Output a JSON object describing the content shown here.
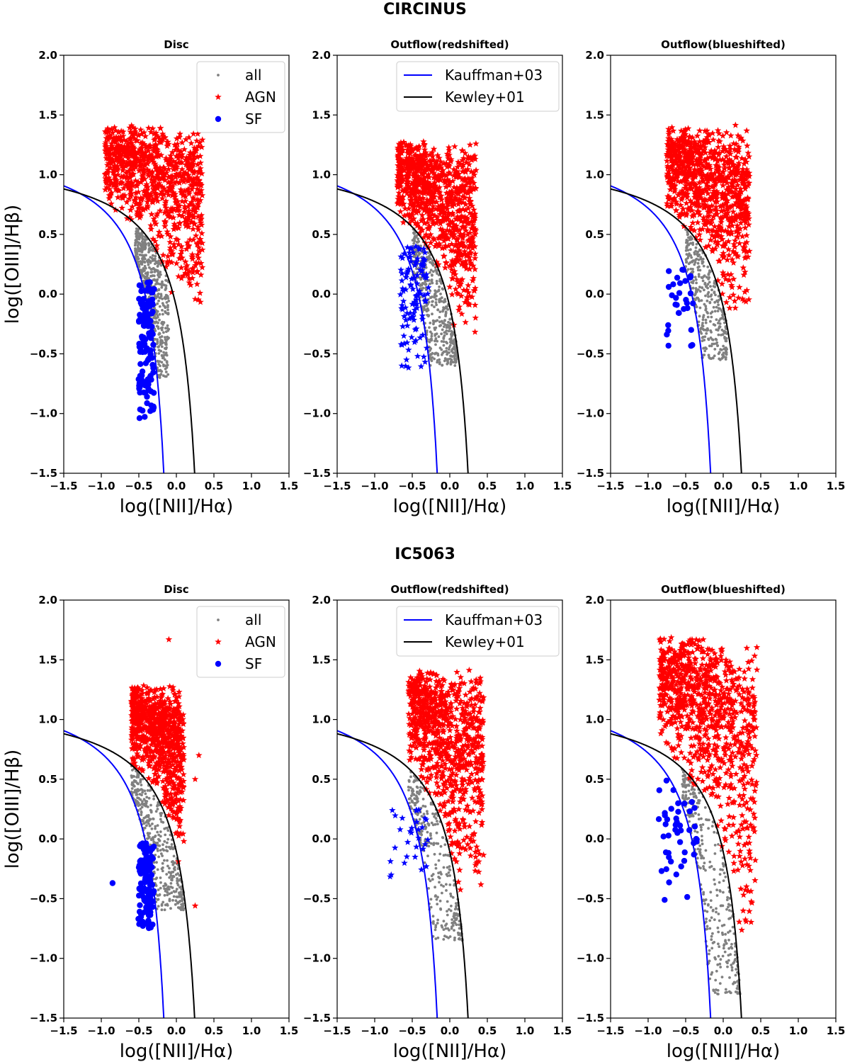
{
  "chart_data": [
    {
      "galaxy": "CIRCINUS",
      "panels": [
        {
          "title": "Disc",
          "type": "scatter",
          "legend": {
            "kind": "markers",
            "location": "upper-right",
            "entries": [
              "all",
              "AGN",
              "SF"
            ]
          },
          "clouds": [
            {
              "label": "all",
              "color": "#808080",
              "marker": "dot",
              "count": 500,
              "x": [
                -0.55,
                -0.1
              ],
              "ybottom": -0.7,
              "ytop": 0.55,
              "mode": "sf_band"
            },
            {
              "label": "AGN",
              "color": "#ff0000",
              "marker": "star",
              "count": 900,
              "x": [
                -0.95,
                0.35
              ],
              "ybottom": -0.15,
              "ytop": 1.42,
              "mode": "agn"
            },
            {
              "label": "SF",
              "color": "#0000ff",
              "marker": "circle",
              "count": 130,
              "x": [
                -0.5,
                -0.3
              ],
              "ybottom": -1.05,
              "ytop": 0.1,
              "mode": "column"
            }
          ]
        },
        {
          "title": "Outflow(redshifted)",
          "type": "scatter",
          "legend": {
            "kind": "lines",
            "location": "upper-right",
            "entries": [
              "Kauffman+03",
              "Kewley+01"
            ]
          },
          "clouds": [
            {
              "label": "all",
              "color": "#808080",
              "marker": "dot",
              "count": 450,
              "x": [
                -0.5,
                0.1
              ],
              "ybottom": -0.6,
              "ytop": 0.55,
              "mode": "sf_band"
            },
            {
              "label": "AGN",
              "color": "#ff0000",
              "marker": "star",
              "count": 900,
              "x": [
                -0.7,
                0.35
              ],
              "ybottom": -0.4,
              "ytop": 1.3,
              "mode": "agn"
            },
            {
              "label": "SF",
              "color": "#0000ff",
              "marker": "star",
              "count": 110,
              "x": [
                -0.65,
                -0.3
              ],
              "ybottom": -0.63,
              "ytop": 0.4,
              "mode": "column"
            }
          ]
        },
        {
          "title": "Outflow(blueshifted)",
          "type": "scatter",
          "legend": null,
          "clouds": [
            {
              "label": "all",
              "color": "#808080",
              "marker": "dot",
              "count": 350,
              "x": [
                -0.5,
                0.05
              ],
              "ybottom": -0.55,
              "ytop": 0.55,
              "mode": "sf_band"
            },
            {
              "label": "AGN",
              "color": "#ff0000",
              "marker": "star",
              "count": 900,
              "x": [
                -0.75,
                0.35
              ],
              "ybottom": -0.15,
              "ytop": 1.42,
              "mode": "agn"
            },
            {
              "label": "SF",
              "color": "#0000ff",
              "marker": "circle",
              "count": 30,
              "x": [
                -0.75,
                -0.3
              ],
              "ybottom": -0.5,
              "ytop": 0.23,
              "mode": "column"
            }
          ]
        }
      ]
    },
    {
      "galaxy": "IC5063",
      "panels": [
        {
          "title": "Disc",
          "type": "scatter",
          "legend": {
            "kind": "markers",
            "location": "upper-right",
            "entries": [
              "all",
              "AGN",
              "SF"
            ]
          },
          "clouds": [
            {
              "label": "all",
              "color": "#808080",
              "marker": "dot",
              "count": 400,
              "x": [
                -0.6,
                0.1
              ],
              "ybottom": -0.6,
              "ytop": 0.65,
              "mode": "sf_band"
            },
            {
              "label": "AGN",
              "color": "#ff0000",
              "marker": "star",
              "count": 800,
              "x": [
                -0.6,
                0.1
              ],
              "ybottom": -0.2,
              "ytop": 1.3,
              "mode": "agn"
            },
            {
              "label": "SF",
              "color": "#0000ff",
              "marker": "circle",
              "count": 120,
              "x": [
                -0.5,
                -0.3
              ],
              "ybottom": -0.77,
              "ytop": -0.03,
              "mode": "column"
            }
          ],
          "outliers": [
            {
              "x": -0.85,
              "y": -0.37,
              "color": "#0000ff",
              "marker": "circle"
            },
            {
              "x": -0.1,
              "y": 1.67,
              "color": "#ff0000",
              "marker": "star"
            },
            {
              "x": 0.3,
              "y": 0.7,
              "color": "#ff0000",
              "marker": "star"
            },
            {
              "x": 0.25,
              "y": 0.5,
              "color": "#ff0000",
              "marker": "star"
            },
            {
              "x": 0.25,
              "y": -0.56,
              "color": "#ff0000",
              "marker": "star"
            }
          ]
        },
        {
          "title": "Outflow(redshifted)",
          "type": "scatter",
          "legend": {
            "kind": "lines",
            "location": "upper-right",
            "entries": [
              "Kauffman+03",
              "Kewley+01"
            ]
          },
          "clouds": [
            {
              "label": "all",
              "color": "#808080",
              "marker": "dot",
              "count": 300,
              "x": [
                -0.55,
                0.25
              ],
              "ybottom": -0.85,
              "ytop": 0.65,
              "mode": "sf_band"
            },
            {
              "label": "AGN",
              "color": "#ff0000",
              "marker": "star",
              "count": 850,
              "x": [
                -0.55,
                0.45
              ],
              "ybottom": -0.45,
              "ytop": 1.45,
              "mode": "agn"
            },
            {
              "label": "SF",
              "color": "#0000ff",
              "marker": "star",
              "count": 30,
              "x": [
                -0.8,
                -0.3
              ],
              "ybottom": -0.33,
              "ytop": 0.25,
              "mode": "column"
            }
          ]
        },
        {
          "title": "Outflow(blueshifted)",
          "type": "scatter",
          "legend": null,
          "clouds": [
            {
              "label": "all",
              "color": "#808080",
              "marker": "dot",
              "count": 350,
              "x": [
                -0.55,
                0.25
              ],
              "ybottom": -1.3,
              "ytop": 0.65,
              "mode": "sf_band"
            },
            {
              "label": "AGN",
              "color": "#ff0000",
              "marker": "star",
              "count": 900,
              "x": [
                -0.85,
                0.45
              ],
              "ybottom": -0.9,
              "ytop": 1.73,
              "mode": "agn"
            },
            {
              "label": "SF",
              "color": "#0000ff",
              "marker": "circle",
              "count": 45,
              "x": [
                -0.85,
                -0.35
              ],
              "ybottom": -0.58,
              "ytop": 0.5,
              "mode": "column"
            }
          ]
        }
      ]
    }
  ],
  "axes": {
    "xlabel": "log([NII]/Hα)",
    "ylabel": "log([OIII]/Hβ)",
    "xlim": [
      -1.5,
      1.5
    ],
    "ylim": [
      -1.5,
      2.0
    ],
    "xticks": [
      -1.5,
      -1.0,
      -0.5,
      0.0,
      0.5,
      1.0,
      1.5
    ],
    "yticks": [
      -1.5,
      -1.0,
      -0.5,
      0.0,
      0.5,
      1.0,
      1.5,
      2.0
    ],
    "xtick_labels": [
      "−1.5",
      "−1.0",
      "−0.5",
      "0.0",
      "0.5",
      "1.0",
      "1.5"
    ],
    "ytick_labels": [
      "−1.5",
      "−1.0",
      "−0.5",
      "0.0",
      "0.5",
      "1.0",
      "1.5",
      "2.0"
    ]
  },
  "demarcation_lines": [
    {
      "name": "Kauffman+03",
      "color": "#0000ff",
      "formula": "0.61/(x-0.05)+1.3",
      "x_asymptote": 0.05
    },
    {
      "name": "Kewley+01",
      "color": "#000000",
      "formula": "0.61/(x-0.47)+1.19",
      "x_asymptote": 0.47
    }
  ],
  "legend_entries": {
    "all": {
      "color": "#808080",
      "marker": "dot"
    },
    "AGN": {
      "color": "#ff0000",
      "marker": "star"
    },
    "SF": {
      "color": "#0000ff",
      "marker": "circle"
    },
    "Kauffman+03": {
      "color": "#0000ff",
      "marker": "line"
    },
    "Kewley+01": {
      "color": "#000000",
      "marker": "line"
    }
  }
}
